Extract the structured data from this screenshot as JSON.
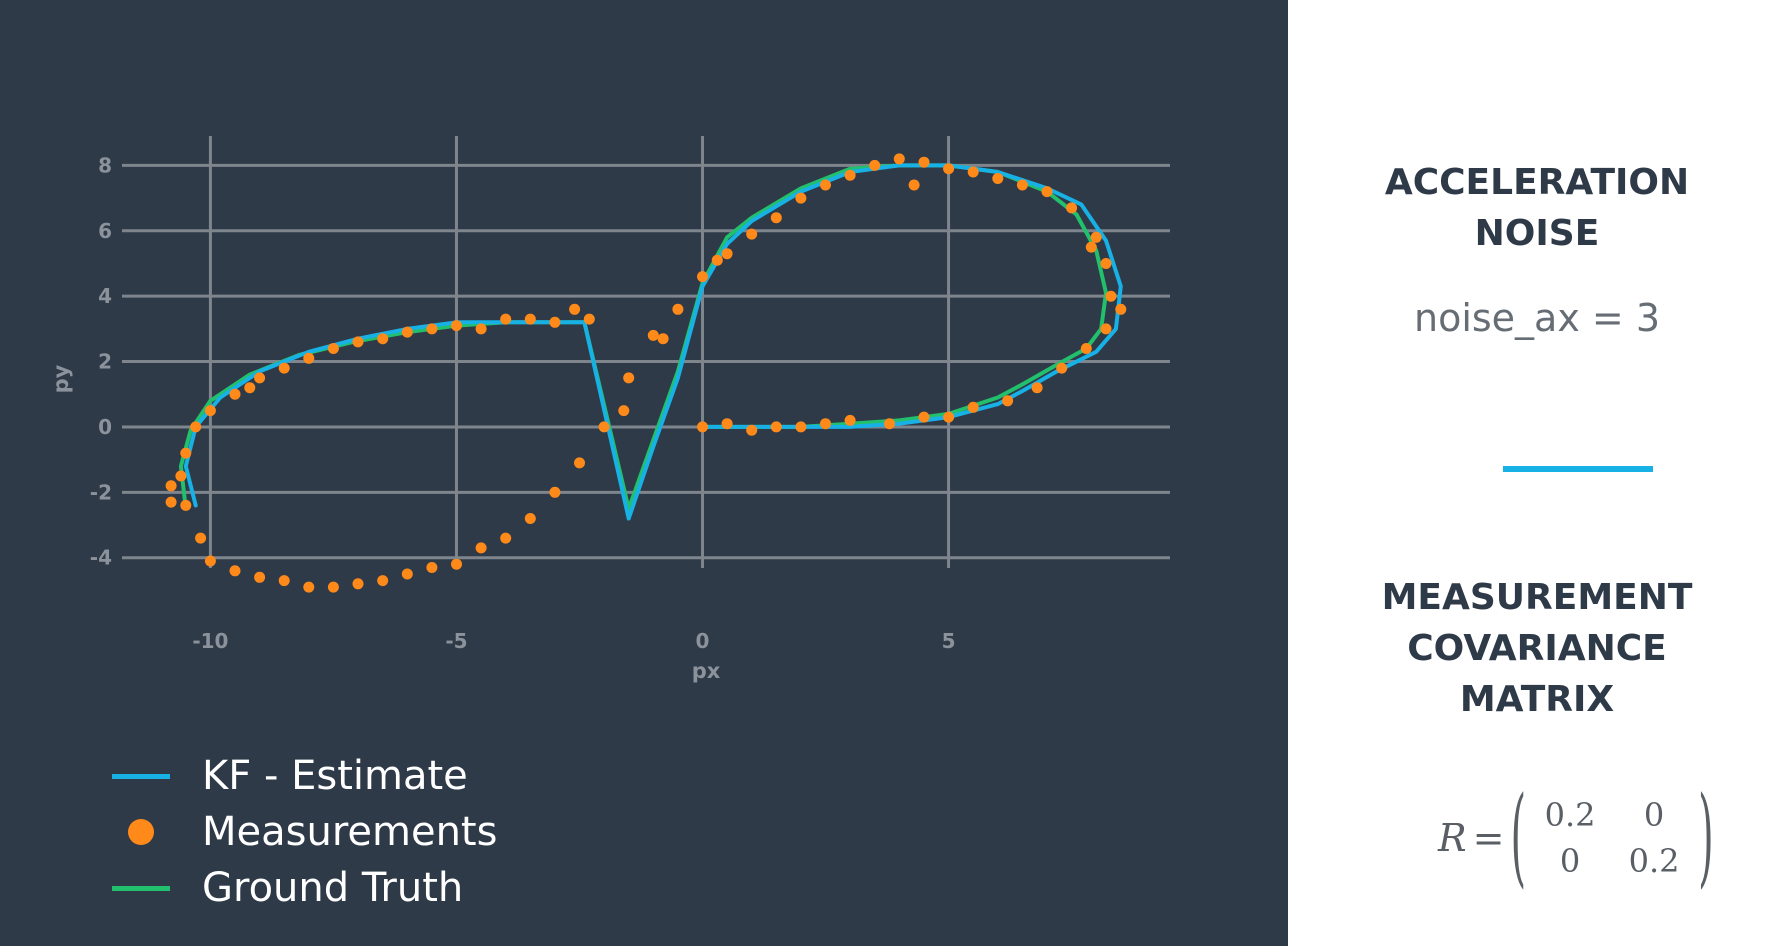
{
  "chart_data": {
    "type": "line",
    "title": "",
    "xlabel": "px",
    "ylabel": "py",
    "xlim": [
      -12.0,
      9.5
    ],
    "ylim": [
      -5.6,
      8.9
    ],
    "x_ticks": [
      -10,
      -5,
      0,
      5
    ],
    "y_ticks": [
      -4,
      -2,
      0,
      2,
      4,
      6,
      8
    ],
    "grid": true,
    "legend_position": "bottom-left",
    "series": [
      {
        "name": "KF - Estimate",
        "type": "line",
        "color": "#17b1e6",
        "x": [
          -10.3,
          -10.5,
          -10.3,
          -9.8,
          -9.0,
          -8.0,
          -7.0,
          -6.0,
          -5.0,
          -4.0,
          -3.0,
          -2.4,
          -1.5,
          -1.0,
          -0.5,
          0.0,
          0.5,
          1.0,
          2.0,
          3.0,
          4.0,
          5.0,
          6.0,
          7.0,
          7.7,
          8.2,
          8.5,
          8.4,
          8.0,
          7.2,
          6.5,
          6.0,
          5.0,
          4.0,
          3.0,
          2.0,
          1.0,
          0.0
        ],
        "y": [
          -2.4,
          -1.2,
          0.0,
          0.9,
          1.7,
          2.3,
          2.7,
          3.0,
          3.2,
          3.2,
          3.2,
          3.2,
          -2.8,
          -0.6,
          1.5,
          4.3,
          5.6,
          6.3,
          7.2,
          7.8,
          8.0,
          8.0,
          7.8,
          7.3,
          6.8,
          5.7,
          4.3,
          3.0,
          2.3,
          1.7,
          1.1,
          0.7,
          0.3,
          0.1,
          0.0,
          0.0,
          0.0,
          0.0
        ]
      },
      {
        "name": "Measurements",
        "type": "scatter",
        "color": "#ff8a1a",
        "x": [
          -2.6,
          -2.3,
          -3.0,
          -3.5,
          -4.0,
          -4.5,
          -5.0,
          -5.5,
          -6.0,
          -6.5,
          -7.0,
          -7.5,
          -8.0,
          -8.5,
          -9.0,
          -9.5,
          -10.0,
          -10.3,
          -10.5,
          -10.6,
          -10.5,
          -10.2,
          -10.8,
          -10.0,
          -9.5,
          -9.0,
          -8.5,
          -8.0,
          -7.5,
          -7.0,
          -6.5,
          -6.0,
          -5.5,
          -5.0,
          -4.5,
          -4.0,
          -3.5,
          -3.0,
          -2.5,
          -2.0,
          -1.5,
          -1.0,
          -0.5,
          0.0,
          0.5,
          1.0,
          1.5,
          2.0,
          2.5,
          3.0,
          3.5,
          4.0,
          4.5,
          5.0,
          5.5,
          6.0,
          6.5,
          7.0,
          7.5,
          8.0,
          8.2,
          8.3,
          8.2,
          7.8,
          7.3,
          6.8,
          6.2,
          5.5,
          5.0,
          4.5,
          3.8,
          3.0,
          2.5,
          2.0,
          1.5,
          1.0,
          0.5,
          0.0,
          -1.6,
          -0.8,
          0.3,
          4.3,
          7.9,
          8.5,
          -9.2,
          -10.8
        ],
        "y": [
          3.6,
          3.3,
          3.2,
          3.3,
          3.3,
          3.0,
          3.1,
          3.0,
          2.9,
          2.7,
          2.6,
          2.4,
          2.1,
          1.8,
          1.5,
          1.0,
          0.5,
          0.0,
          -0.8,
          -1.5,
          -2.4,
          -3.4,
          -2.3,
          -4.1,
          -4.4,
          -4.6,
          -4.7,
          -4.9,
          -4.9,
          -4.8,
          -4.7,
          -4.5,
          -4.3,
          -4.2,
          -3.7,
          -3.4,
          -2.8,
          -2.0,
          -1.1,
          0.0,
          1.5,
          2.8,
          3.6,
          4.6,
          5.3,
          5.9,
          6.4,
          7.0,
          7.4,
          7.7,
          8.0,
          8.2,
          8.1,
          7.9,
          7.8,
          7.6,
          7.4,
          7.2,
          6.7,
          5.8,
          5.0,
          4.0,
          3.0,
          2.4,
          1.8,
          1.2,
          0.8,
          0.6,
          0.3,
          0.3,
          0.1,
          0.2,
          0.1,
          0.0,
          0.0,
          -0.1,
          0.1,
          0.0,
          0.5,
          2.7,
          5.1,
          7.4,
          5.5,
          3.6,
          1.2,
          -1.8
        ]
      },
      {
        "name": "Ground Truth",
        "type": "line",
        "color": "#22bf6c",
        "x": [
          -10.5,
          -10.6,
          -10.4,
          -10.0,
          -9.2,
          -8.2,
          -7.1,
          -6.0,
          -5.0,
          -4.0,
          -3.0,
          -2.4,
          -1.5,
          -1.0,
          -0.5,
          0.0,
          0.5,
          1.0,
          2.0,
          3.0,
          4.0,
          5.0,
          6.0,
          7.0,
          7.6,
          8.0,
          8.2,
          8.1,
          7.8,
          7.2,
          6.5,
          6.0,
          5.0,
          4.0,
          3.0,
          2.0,
          1.0,
          0.0
        ],
        "y": [
          -2.5,
          -1.2,
          -0.1,
          0.8,
          1.6,
          2.2,
          2.6,
          2.9,
          3.1,
          3.2,
          3.2,
          3.2,
          -2.5,
          -0.4,
          1.7,
          4.4,
          5.8,
          6.4,
          7.3,
          7.9,
          8.0,
          8.0,
          7.8,
          7.2,
          6.5,
          5.4,
          4.1,
          3.0,
          2.4,
          1.9,
          1.3,
          0.9,
          0.4,
          0.2,
          0.1,
          0.0,
          0.0,
          0.0
        ]
      }
    ]
  },
  "legend": {
    "items": [
      {
        "key": "kf",
        "label": "KF - Estimate",
        "color": "#17b1e6",
        "symbol": "line"
      },
      {
        "key": "meas",
        "label": "Measurements",
        "color": "#ff8a1a",
        "symbol": "dot"
      },
      {
        "key": "gt",
        "label": "Ground Truth",
        "color": "#22bf6c",
        "symbol": "line"
      }
    ]
  },
  "right_panel": {
    "acceleration": {
      "title_line1": "ACCELERATION",
      "title_line2": "NOISE",
      "value": "noise_ax = 3"
    },
    "divider_color": "#17b1e6",
    "measurement": {
      "title_line1": "MEASUREMENT",
      "title_line2": "COVARIANCE",
      "title_line3": "MATRIX",
      "symbol": "R",
      "equals": "=",
      "matrix": [
        [
          "0.2",
          "0"
        ],
        [
          "0",
          "0.2"
        ]
      ]
    }
  }
}
